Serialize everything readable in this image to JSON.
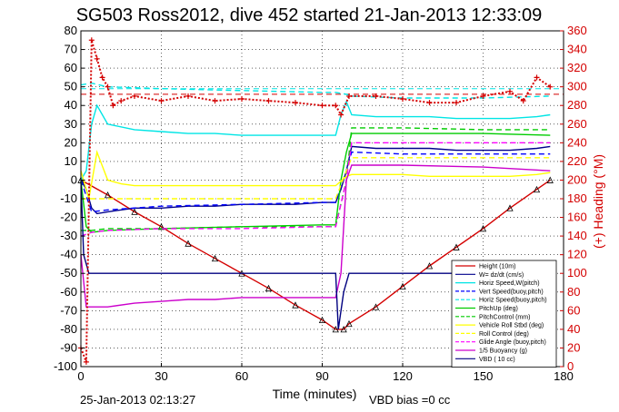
{
  "chart_data": {
    "type": "line",
    "title": "SG503 Ross2012, dive 452 started 21-Jan-2013 12:33:09",
    "xlabel": "Time (minutes)",
    "ylabel": "",
    "ylabel_right": "(+) Heading (°M)",
    "xlim": [
      0,
      180
    ],
    "ylim": [
      -100,
      80
    ],
    "ylim_right": [
      0,
      360
    ],
    "x_ticks": [
      "0",
      "30",
      "60",
      "90",
      "120",
      "150",
      "180"
    ],
    "y_ticks": [
      "-100",
      "-90",
      "-80",
      "-70",
      "-60",
      "-50",
      "-40",
      "-30",
      "-20",
      "-10",
      "0",
      "10",
      "20",
      "30",
      "40",
      "50",
      "60",
      "70",
      "80"
    ],
    "y_ticks_right": [
      "0",
      "20",
      "40",
      "60",
      "80",
      "100",
      "120",
      "140",
      "160",
      "180",
      "200",
      "220",
      "240",
      "260",
      "280",
      "300",
      "320",
      "340",
      "360"
    ],
    "grid": true,
    "legend_position": "bottom-right",
    "footer_left": "25-Jan-2013 02:13:27",
    "footer_right": "VBD bias =0 cc",
    "series": [
      {
        "name": "Height (10m)",
        "color": "#d40000",
        "style": "solid",
        "markers": "triangle",
        "x": [
          0,
          10,
          20,
          30,
          40,
          50,
          60,
          70,
          80,
          90,
          95,
          98,
          100,
          110,
          120,
          130,
          140,
          150,
          160,
          170,
          175
        ],
        "y": [
          0,
          -8,
          -17,
          -25,
          -34,
          -42,
          -50,
          -58,
          -67,
          -75,
          -80,
          -80,
          -77,
          -68,
          -57,
          -46,
          -36,
          -26,
          -15,
          -5,
          0
        ]
      },
      {
        "name": "W= dz/dt (cm/s)",
        "color": "#00008b",
        "style": "solid",
        "x": [
          0,
          2,
          4,
          6,
          10,
          20,
          30,
          40,
          50,
          60,
          70,
          80,
          90,
          95,
          97,
          99,
          101,
          110,
          120,
          130,
          140,
          150,
          160,
          170,
          175
        ],
        "y": [
          0,
          -5,
          -15,
          -18,
          -17,
          -15,
          -15,
          -14,
          -14,
          -13,
          -13,
          -13,
          -12,
          -12,
          -5,
          5,
          18,
          17,
          17,
          17,
          16,
          16,
          16,
          17,
          18
        ]
      },
      {
        "name": "Horiz Speed,W(pitch)",
        "color": "#00e5e5",
        "style": "solid",
        "x": [
          0,
          2,
          4,
          6,
          10,
          20,
          30,
          40,
          50,
          60,
          70,
          80,
          90,
          95,
          97,
          99,
          101,
          110,
          120,
          130,
          140,
          150,
          160,
          170,
          175
        ],
        "y": [
          0,
          5,
          30,
          40,
          30,
          27,
          26,
          25,
          25,
          24,
          24,
          24,
          24,
          24,
          35,
          42,
          35,
          34,
          34,
          34,
          33,
          33,
          33,
          34,
          35
        ]
      },
      {
        "name": "Vert Speed(buoy,pitch)",
        "color": "#0000ff",
        "style": "dashed",
        "x": [
          0,
          4,
          10,
          30,
          60,
          90,
          95,
          99,
          101,
          120,
          150,
          175
        ],
        "y": [
          0,
          -17,
          -16,
          -14,
          -13,
          -12,
          -12,
          5,
          15,
          14,
          14,
          14
        ]
      },
      {
        "name": "Horiz Speed(buoy,pitch)",
        "color": "#00e5e5",
        "style": "dashed",
        "x": [
          0,
          4,
          10,
          30,
          60,
          90,
          95,
          99,
          101,
          120,
          150,
          175
        ],
        "y": [
          51,
          52,
          50,
          49,
          48,
          47,
          47,
          46,
          45,
          44,
          44,
          45
        ]
      },
      {
        "name": "PitchUp (deg)",
        "color": "#00cc00",
        "style": "solid",
        "x": [
          0,
          2,
          4,
          10,
          30,
          60,
          90,
          95,
          97,
          99,
          101,
          120,
          150,
          175
        ],
        "y": [
          0,
          -25,
          -28,
          -27,
          -26,
          -25,
          -24,
          -24,
          0,
          15,
          25,
          25,
          25,
          24
        ]
      },
      {
        "name": "PitchControl (mm)",
        "color": "#00cc00",
        "style": "dashed",
        "x": [
          0,
          4,
          10,
          30,
          60,
          90,
          95,
          99,
          101,
          120,
          150,
          175
        ],
        "y": [
          -27,
          -27,
          -26,
          -26,
          -25,
          -25,
          -25,
          0,
          28,
          28,
          27,
          27
        ]
      },
      {
        "name": "Vehicle Roll Stbd (deg)",
        "color": "#ffff00",
        "style": "solid",
        "x": [
          0,
          3,
          6,
          10,
          15,
          20,
          30,
          40,
          50,
          60,
          70,
          80,
          90,
          95,
          99,
          101,
          110,
          120,
          130,
          140,
          150,
          160,
          170,
          175
        ],
        "y": [
          5,
          -10,
          15,
          0,
          -2,
          -3,
          -3,
          -3,
          -3,
          -3,
          -3,
          -3,
          -3,
          -3,
          2,
          3,
          3,
          3,
          2,
          2,
          2,
          2,
          3,
          4
        ]
      },
      {
        "name": "Roll Control (deg)",
        "color": "#ffff00",
        "style": "dashed",
        "x": [
          0,
          4,
          10,
          30,
          60,
          90,
          95,
          99,
          101,
          120,
          150,
          175
        ],
        "y": [
          -10,
          -10,
          -10,
          -10,
          -10,
          -10,
          -10,
          5,
          12,
          12,
          12,
          12
        ]
      },
      {
        "name": "Glide Angle (buoy,pitch)",
        "color": "#ff00ff",
        "style": "dashed",
        "x": [
          0,
          4,
          10,
          30,
          60,
          90,
          95,
          99,
          101,
          120,
          150,
          175
        ],
        "y": [
          -30,
          -28,
          -27,
          -26,
          -26,
          -25,
          -25,
          0,
          20,
          20,
          20,
          20
        ]
      },
      {
        "name": "1/5 Buoyancy (g)",
        "color": "#cc00cc",
        "style": "solid",
        "x": [
          0,
          2,
          10,
          20,
          30,
          40,
          50,
          60,
          70,
          80,
          90,
          95,
          97,
          99,
          101,
          120,
          150,
          175
        ],
        "y": [
          -40,
          -68,
          -68,
          -66,
          -65,
          -64,
          -64,
          -63,
          -63,
          -63,
          -63,
          -63,
          -50,
          0,
          8,
          8,
          7,
          5
        ]
      },
      {
        "name": "VBD ( 10 cc)",
        "color": "#000080",
        "style": "solid",
        "x": [
          0,
          1,
          3,
          5,
          95,
          96,
          98,
          100,
          175
        ],
        "y": [
          0,
          -40,
          -50,
          -50,
          -50,
          -80,
          -60,
          -50,
          -50
        ]
      },
      {
        "name": "(+) Heading",
        "color": "#d40000",
        "style": "dotted",
        "markers": "plus",
        "axis": "right",
        "x": [
          0,
          2,
          4,
          6,
          8,
          10,
          12,
          15,
          20,
          30,
          40,
          50,
          60,
          70,
          80,
          90,
          95,
          97,
          100,
          110,
          120,
          130,
          140,
          150,
          160,
          165,
          170,
          175
        ],
        "y": [
          20,
          5,
          350,
          330,
          310,
          300,
          280,
          285,
          290,
          285,
          290,
          285,
          287,
          285,
          283,
          280,
          280,
          270,
          290,
          290,
          287,
          283,
          283,
          290,
          295,
          285,
          310,
          300
        ]
      }
    ],
    "reference_lines": [
      {
        "color": "#d40000",
        "style": "dashed",
        "y": 46
      },
      {
        "color": "#00e5e5",
        "style": "dashed",
        "y": 49
      }
    ]
  }
}
